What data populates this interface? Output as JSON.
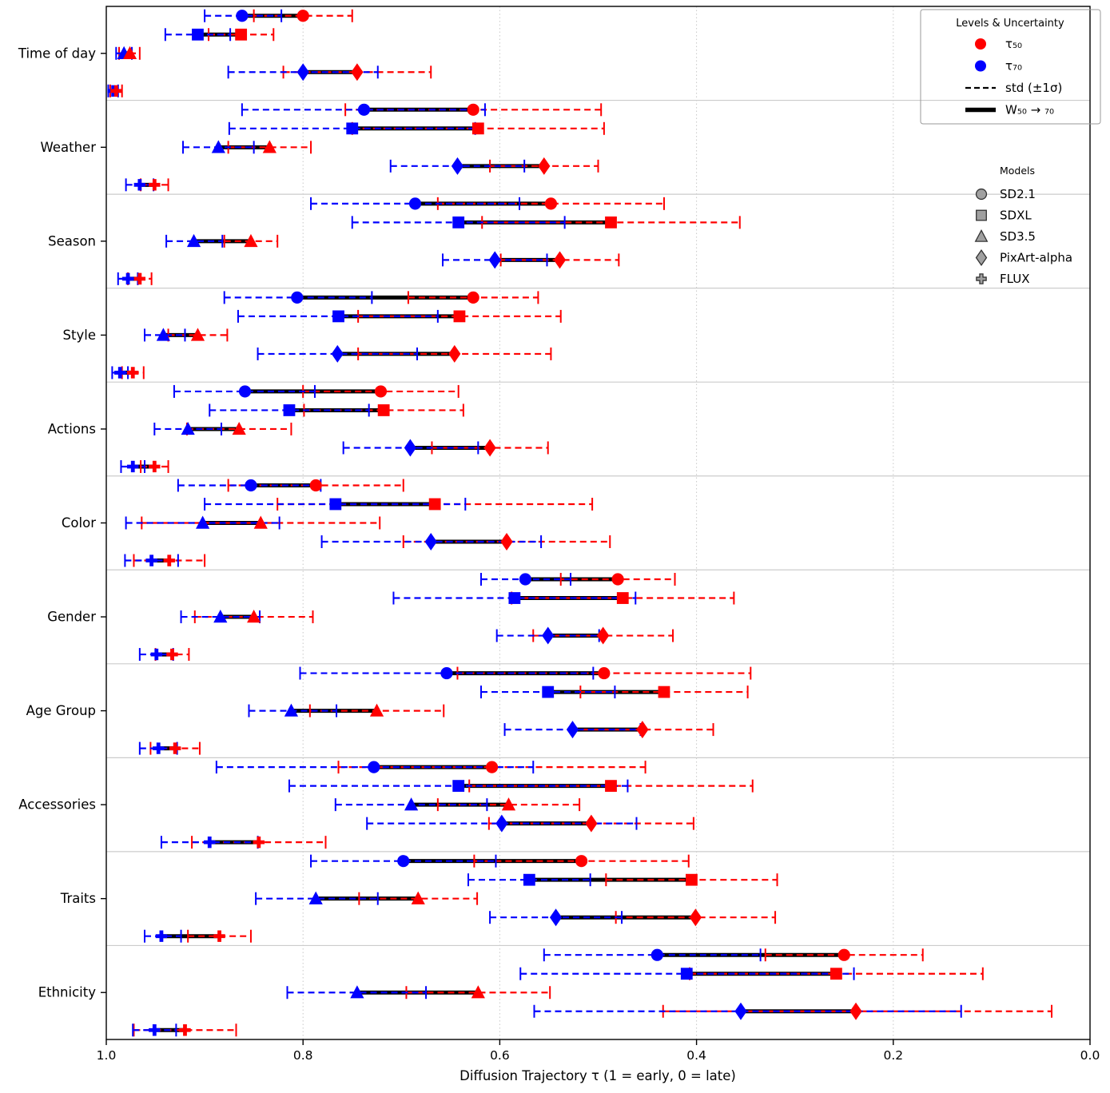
{
  "figure": {
    "background": "#ffffff",
    "x_axis_label": "Diffusion Trajectory τ (1 = early, 0 = late)"
  },
  "colors": {
    "tau50": "#ff0000",
    "tau70": "#0000ff",
    "connector": "#000000",
    "gridline": "#c8c8c8",
    "separator": "#cccccc",
    "legend_marker_fill": "#a0a0a0",
    "legend_marker_edge": "#333333",
    "spine": "#000000"
  },
  "legend_levels": {
    "title": "Levels & Uncertainty",
    "items": [
      {
        "label": "τ₅₀",
        "swatch": "circle",
        "color": "#ff0000"
      },
      {
        "label": "τ₇₀",
        "swatch": "circle",
        "color": "#0000ff"
      },
      {
        "label": "std (±1σ)",
        "swatch": "dashed",
        "color": "#000000"
      },
      {
        "label": "W₅₀ → ₇₀",
        "swatch": "thick",
        "color": "#000000"
      }
    ]
  },
  "legend_models": {
    "title": "Models",
    "items": [
      {
        "label": "SD2.1",
        "marker": "circle"
      },
      {
        "label": "SDXL",
        "marker": "square"
      },
      {
        "label": "SD3.5",
        "marker": "triangle"
      },
      {
        "label": "PixArt-alpha",
        "marker": "diamond"
      },
      {
        "label": "FLUX",
        "marker": "plus"
      }
    ]
  },
  "chart_data": {
    "type": "scatter",
    "x_axis": {
      "label": "Diffusion Trajectory τ (1 = early, 0 = late)",
      "range": [
        1.0,
        0.0
      ],
      "ticks": [
        1.0,
        0.8,
        0.6,
        0.4,
        0.2,
        0.0
      ],
      "tick_labels": [
        "1.0",
        "0.8",
        "0.6",
        "0.4",
        "0.2",
        "0.0"
      ],
      "direction": "reversed",
      "grid": "dotted vertical at 0.8/0.6/0.4/0.2"
    },
    "categories": [
      "Time of day",
      "Weather",
      "Season",
      "Style",
      "Actions",
      "Color",
      "Gender",
      "Age Group",
      "Accessories",
      "Traits",
      "Ethnicity"
    ],
    "models": [
      "SD2.1",
      "SDXL",
      "SD3.5",
      "PixArt-alpha",
      "FLUX"
    ],
    "marker_shapes": {
      "SD2.1": "circle",
      "SDXL": "square",
      "SD3.5": "triangle",
      "PixArt-alpha": "diamond",
      "FLUX": "plus"
    },
    "series": [
      {
        "category": "Time of day",
        "rows": [
          {
            "model": "SD2.1",
            "tau50": 0.8,
            "tau50_std": [
              0.75,
              0.85
            ],
            "tau70": 0.862,
            "tau70_std": [
              0.822,
              0.9
            ]
          },
          {
            "model": "SDXL",
            "tau50": 0.863,
            "tau50_std": [
              0.83,
              0.896
            ],
            "tau70": 0.907,
            "tau70_std": [
              0.874,
              0.94
            ]
          },
          {
            "model": "SD3.5",
            "tau50": 0.976,
            "tau50_std": [
              0.966,
              0.987
            ],
            "tau70": 0.982,
            "tau70_std": [
              0.974,
              0.99
            ]
          },
          {
            "model": "PixArt-alpha",
            "tau50": 0.745,
            "tau50_std": [
              0.67,
              0.82
            ],
            "tau70": 0.8,
            "tau70_std": [
              0.724,
              0.876
            ]
          },
          {
            "model": "FLUX",
            "tau50": 0.99,
            "tau50_std": [
              0.984,
              0.996
            ],
            "tau70": 0.993,
            "tau70_std": [
              0.988,
              0.998
            ]
          }
        ]
      },
      {
        "category": "Weather",
        "rows": [
          {
            "model": "SD2.1",
            "tau50": 0.627,
            "tau50_std": [
              0.497,
              0.757
            ],
            "tau70": 0.738,
            "tau70_std": [
              0.615,
              0.862
            ]
          },
          {
            "model": "SDXL",
            "tau50": 0.622,
            "tau50_std": [
              0.494,
              0.75
            ],
            "tau70": 0.75,
            "tau70_std": [
              0.625,
              0.875
            ]
          },
          {
            "model": "SD3.5",
            "tau50": 0.834,
            "tau50_std": [
              0.792,
              0.876
            ],
            "tau70": 0.886,
            "tau70_std": [
              0.85,
              0.922
            ]
          },
          {
            "model": "PixArt-alpha",
            "tau50": 0.555,
            "tau50_std": [
              0.5,
              0.61
            ],
            "tau70": 0.643,
            "tau70_std": [
              0.575,
              0.711
            ]
          },
          {
            "model": "FLUX",
            "tau50": 0.951,
            "tau50_std": [
              0.937,
              0.965
            ],
            "tau70": 0.966,
            "tau70_std": [
              0.952,
              0.98
            ]
          }
        ]
      },
      {
        "category": "Season",
        "rows": [
          {
            "model": "SD2.1",
            "tau50": 0.548,
            "tau50_std": [
              0.433,
              0.663
            ],
            "tau70": 0.686,
            "tau70_std": [
              0.58,
              0.792
            ]
          },
          {
            "model": "SDXL",
            "tau50": 0.487,
            "tau50_std": [
              0.356,
              0.618
            ],
            "tau70": 0.642,
            "tau70_std": [
              0.534,
              0.75
            ]
          },
          {
            "model": "SD3.5",
            "tau50": 0.853,
            "tau50_std": [
              0.826,
              0.88
            ],
            "tau70": 0.911,
            "tau70_std": [
              0.882,
              0.939
            ]
          },
          {
            "model": "PixArt-alpha",
            "tau50": 0.539,
            "tau50_std": [
              0.479,
              0.599
            ],
            "tau70": 0.605,
            "tau70_std": [
              0.552,
              0.658
            ]
          },
          {
            "model": "FLUX",
            "tau50": 0.966,
            "tau50_std": [
              0.954,
              0.978
            ],
            "tau70": 0.978,
            "tau70_std": [
              0.968,
              0.988
            ]
          }
        ]
      },
      {
        "category": "Style",
        "rows": [
          {
            "model": "SD2.1",
            "tau50": 0.627,
            "tau50_std": [
              0.561,
              0.693
            ],
            "tau70": 0.806,
            "tau70_std": [
              0.73,
              0.88
            ]
          },
          {
            "model": "SDXL",
            "tau50": 0.641,
            "tau50_std": [
              0.538,
              0.744
            ],
            "tau70": 0.764,
            "tau70_std": [
              0.663,
              0.866
            ]
          },
          {
            "model": "SD3.5",
            "tau50": 0.907,
            "tau50_std": [
              0.877,
              0.937
            ],
            "tau70": 0.942,
            "tau70_std": [
              0.92,
              0.961
            ]
          },
          {
            "model": "PixArt-alpha",
            "tau50": 0.646,
            "tau50_std": [
              0.548,
              0.744
            ],
            "tau70": 0.765,
            "tau70_std": [
              0.684,
              0.846
            ]
          },
          {
            "model": "FLUX",
            "tau50": 0.973,
            "tau50_std": [
              0.962,
              0.984
            ],
            "tau70": 0.986,
            "tau70_std": [
              0.978,
              0.994
            ]
          }
        ]
      },
      {
        "category": "Actions",
        "rows": [
          {
            "model": "SD2.1",
            "tau50": 0.721,
            "tau50_std": [
              0.642,
              0.8
            ],
            "tau70": 0.859,
            "tau70_std": [
              0.788,
              0.931
            ]
          },
          {
            "model": "SDXL",
            "tau50": 0.718,
            "tau50_std": [
              0.637,
              0.799
            ],
            "tau70": 0.814,
            "tau70_std": [
              0.733,
              0.895
            ]
          },
          {
            "model": "SD3.5",
            "tau50": 0.865,
            "tau50_std": [
              0.812,
              0.918
            ],
            "tau70": 0.917,
            "tau70_std": [
              0.883,
              0.951
            ]
          },
          {
            "model": "PixArt-alpha",
            "tau50": 0.61,
            "tau50_std": [
              0.551,
              0.669
            ],
            "tau70": 0.691,
            "tau70_std": [
              0.622,
              0.759
            ]
          },
          {
            "model": "FLUX",
            "tau50": 0.951,
            "tau50_std": [
              0.937,
              0.965
            ],
            "tau70": 0.973,
            "tau70_std": [
              0.961,
              0.985
            ]
          }
        ]
      },
      {
        "category": "Color",
        "rows": [
          {
            "model": "SD2.1",
            "tau50": 0.787,
            "tau50_std": [
              0.698,
              0.876
            ],
            "tau70": 0.853,
            "tau70_std": [
              0.782,
              0.927
            ]
          },
          {
            "model": "SDXL",
            "tau50": 0.666,
            "tau50_std": [
              0.506,
              0.826
            ],
            "tau70": 0.767,
            "tau70_std": [
              0.635,
              0.9
            ]
          },
          {
            "model": "SD3.5",
            "tau50": 0.843,
            "tau50_std": [
              0.722,
              0.964
            ],
            "tau70": 0.902,
            "tau70_std": [
              0.824,
              0.98
            ]
          },
          {
            "model": "PixArt-alpha",
            "tau50": 0.593,
            "tau50_std": [
              0.488,
              0.698
            ],
            "tau70": 0.67,
            "tau70_std": [
              0.558,
              0.781
            ]
          },
          {
            "model": "FLUX",
            "tau50": 0.936,
            "tau50_std": [
              0.9,
              0.972
            ],
            "tau70": 0.954,
            "tau70_std": [
              0.927,
              0.981
            ]
          }
        ]
      },
      {
        "category": "Gender",
        "rows": [
          {
            "model": "SD2.1",
            "tau50": 0.48,
            "tau50_std": [
              0.422,
              0.538
            ],
            "tau70": 0.574,
            "tau70_std": [
              0.528,
              0.619
            ]
          },
          {
            "model": "SDXL",
            "tau50": 0.475,
            "tau50_std": [
              0.362,
              0.588
            ],
            "tau70": 0.585,
            "tau70_std": [
              0.462,
              0.708
            ]
          },
          {
            "model": "SD3.5",
            "tau50": 0.85,
            "tau50_std": [
              0.79,
              0.91
            ],
            "tau70": 0.884,
            "tau70_std": [
              0.844,
              0.924
            ]
          },
          {
            "model": "PixArt-alpha",
            "tau50": 0.495,
            "tau50_std": [
              0.424,
              0.566
            ],
            "tau70": 0.551,
            "tau70_std": [
              0.499,
              0.603
            ]
          },
          {
            "model": "FLUX",
            "tau50": 0.933,
            "tau50_std": [
              0.916,
              0.95
            ],
            "tau70": 0.949,
            "tau70_std": [
              0.932,
              0.966
            ]
          }
        ]
      },
      {
        "category": "Age Group",
        "rows": [
          {
            "model": "SD2.1",
            "tau50": 0.494,
            "tau50_std": [
              0.345,
              0.643
            ],
            "tau70": 0.654,
            "tau70_std": [
              0.505,
              0.803
            ]
          },
          {
            "model": "SDXL",
            "tau50": 0.433,
            "tau50_std": [
              0.348,
              0.518
            ],
            "tau70": 0.551,
            "tau70_std": [
              0.483,
              0.619
            ]
          },
          {
            "model": "SD3.5",
            "tau50": 0.725,
            "tau50_std": [
              0.657,
              0.793
            ],
            "tau70": 0.812,
            "tau70_std": [
              0.766,
              0.855
            ]
          },
          {
            "model": "PixArt-alpha",
            "tau50": 0.455,
            "tau50_std": [
              0.383,
              0.527
            ],
            "tau70": 0.526,
            "tau70_std": [
              0.457,
              0.595
            ]
          },
          {
            "model": "FLUX",
            "tau50": 0.93,
            "tau50_std": [
              0.905,
              0.955
            ],
            "tau70": 0.947,
            "tau70_std": [
              0.928,
              0.966
            ]
          }
        ]
      },
      {
        "category": "Accessories",
        "rows": [
          {
            "model": "SD2.1",
            "tau50": 0.608,
            "tau50_std": [
              0.452,
              0.764
            ],
            "tau70": 0.728,
            "tau70_std": [
              0.566,
              0.888
            ]
          },
          {
            "model": "SDXL",
            "tau50": 0.487,
            "tau50_std": [
              0.343,
              0.631
            ],
            "tau70": 0.642,
            "tau70_std": [
              0.47,
              0.814
            ]
          },
          {
            "model": "SD3.5",
            "tau50": 0.591,
            "tau50_std": [
              0.519,
              0.663
            ],
            "tau70": 0.69,
            "tau70_std": [
              0.613,
              0.767
            ]
          },
          {
            "model": "PixArt-alpha",
            "tau50": 0.507,
            "tau50_std": [
              0.403,
              0.611
            ],
            "tau70": 0.598,
            "tau70_std": [
              0.461,
              0.735
            ]
          },
          {
            "model": "FLUX",
            "tau50": 0.845,
            "tau50_std": [
              0.777,
              0.913
            ],
            "tau70": 0.895,
            "tau70_std": [
              0.846,
              0.944
            ]
          }
        ]
      },
      {
        "category": "Traits",
        "rows": [
          {
            "model": "SD2.1",
            "tau50": 0.517,
            "tau50_std": [
              0.408,
              0.626
            ],
            "tau70": 0.698,
            "tau70_std": [
              0.604,
              0.792
            ]
          },
          {
            "model": "SDXL",
            "tau50": 0.405,
            "tau50_std": [
              0.318,
              0.492
            ],
            "tau70": 0.57,
            "tau70_std": [
              0.508,
              0.632
            ]
          },
          {
            "model": "SD3.5",
            "tau50": 0.683,
            "tau50_std": [
              0.623,
              0.743
            ],
            "tau70": 0.787,
            "tau70_std": [
              0.724,
              0.848
            ]
          },
          {
            "model": "PixArt-alpha",
            "tau50": 0.401,
            "tau50_std": [
              0.32,
              0.482
            ],
            "tau70": 0.543,
            "tau70_std": [
              0.476,
              0.61
            ]
          },
          {
            "model": "FLUX",
            "tau50": 0.885,
            "tau50_std": [
              0.853,
              0.917
            ],
            "tau70": 0.944,
            "tau70_std": [
              0.924,
              0.961
            ]
          }
        ]
      },
      {
        "category": "Ethnicity",
        "rows": [
          {
            "model": "SD2.1",
            "tau50": 0.25,
            "tau50_std": [
              0.17,
              0.33
            ],
            "tau70": 0.44,
            "tau70_std": [
              0.335,
              0.555
            ]
          },
          {
            "model": "SDXL",
            "tau50": 0.258,
            "tau50_std": [
              0.109,
              0.407
            ],
            "tau70": 0.41,
            "tau70_std": [
              0.24,
              0.579
            ]
          },
          {
            "model": "SD3.5",
            "tau50": 0.622,
            "tau50_std": [
              0.549,
              0.695
            ],
            "tau70": 0.745,
            "tau70_std": [
              0.675,
              0.816
            ]
          },
          {
            "model": "PixArt-alpha",
            "tau50": 0.238,
            "tau50_std": [
              0.039,
              0.434
            ],
            "tau70": 0.355,
            "tau70_std": [
              0.131,
              0.565
            ]
          },
          {
            "model": "FLUX",
            "tau50": 0.92,
            "tau50_std": [
              0.868,
              0.972
            ],
            "tau70": 0.951,
            "tau70_std": [
              0.929,
              0.973
            ]
          }
        ]
      }
    ]
  }
}
